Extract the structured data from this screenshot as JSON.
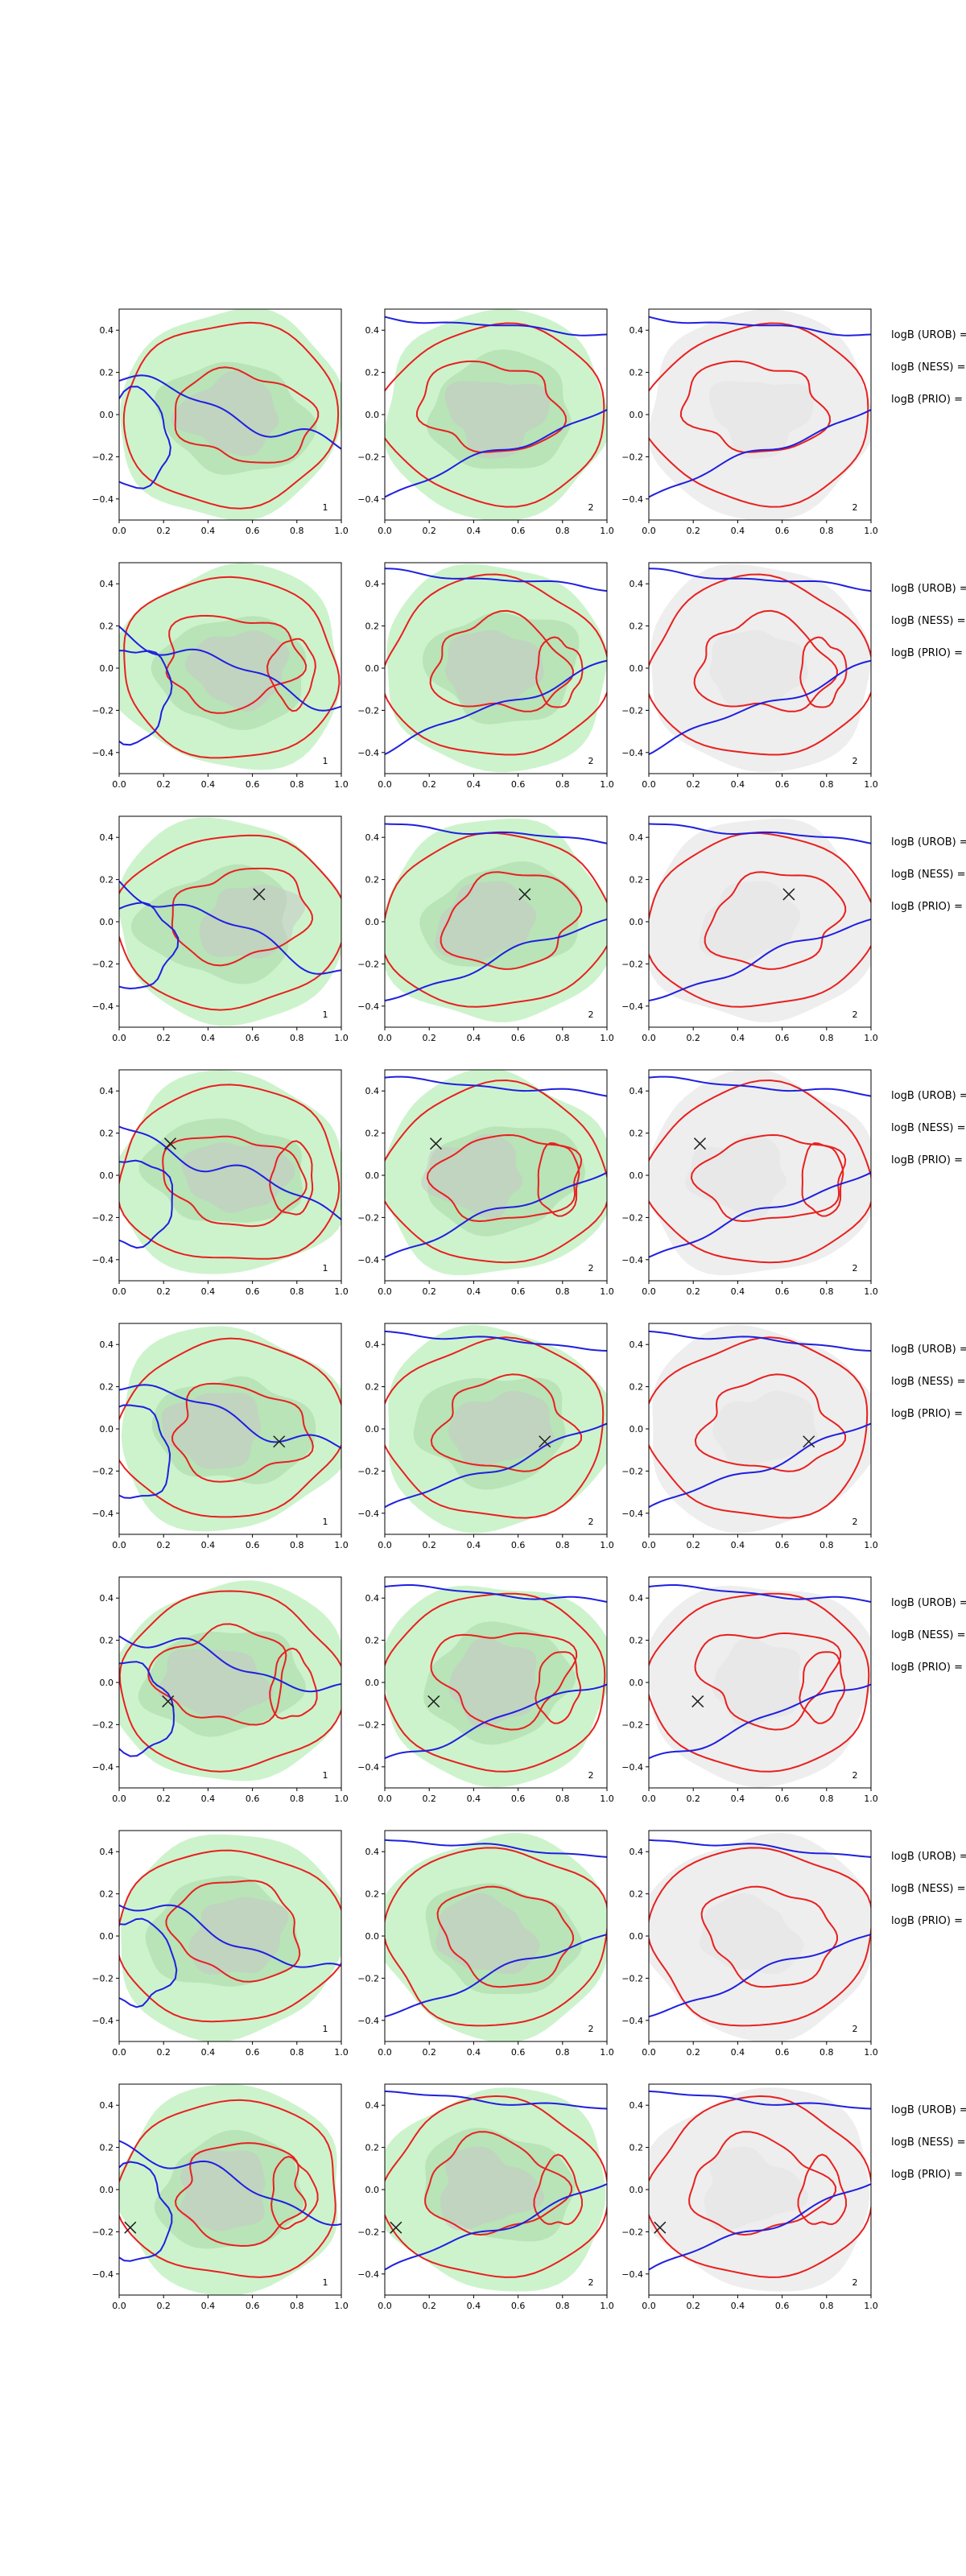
{
  "figure": {
    "background": "#ffffff"
  },
  "colors": {
    "fill_light_green": "#cdf3cc",
    "fill_mid_green": "#b4e1b3",
    "fill_grey": "#c7c7c7",
    "fill_light_grey": "#eeeeee",
    "contour_red": "#e8201f",
    "contour_blue": "#1f1fe0",
    "marker": "#202020",
    "axis": "#000000"
  },
  "chart_data": {
    "type": "contour",
    "grid": false,
    "layout": "8 rows x 3 columns of panels with a text column on the right",
    "xlim": [
      0,
      1
    ],
    "ylim": [
      -0.5,
      0.5
    ],
    "xticks": [
      "0.0",
      "0.2",
      "0.4",
      "0.6",
      "0.8",
      "1.0"
    ],
    "yticks": [
      "−0.4",
      "−0.2",
      "0.0",
      "0.2",
      "0.4"
    ],
    "panel_labels": [
      "1",
      "2",
      "2"
    ],
    "row_texts": [
      "logB (UROB) =",
      "logB (NESS) =",
      "logB (PRIO) ="
    ],
    "rows": [
      {
        "marker": null
      },
      {
        "marker": null
      },
      {
        "marker": [
          0.63,
          0.13
        ]
      },
      {
        "marker": [
          0.23,
          0.15
        ]
      },
      {
        "marker": [
          0.72,
          -0.06
        ]
      },
      {
        "marker": [
          0.22,
          -0.09
        ]
      },
      {
        "marker": null
      },
      {
        "marker": [
          0.05,
          -0.18
        ]
      }
    ]
  }
}
